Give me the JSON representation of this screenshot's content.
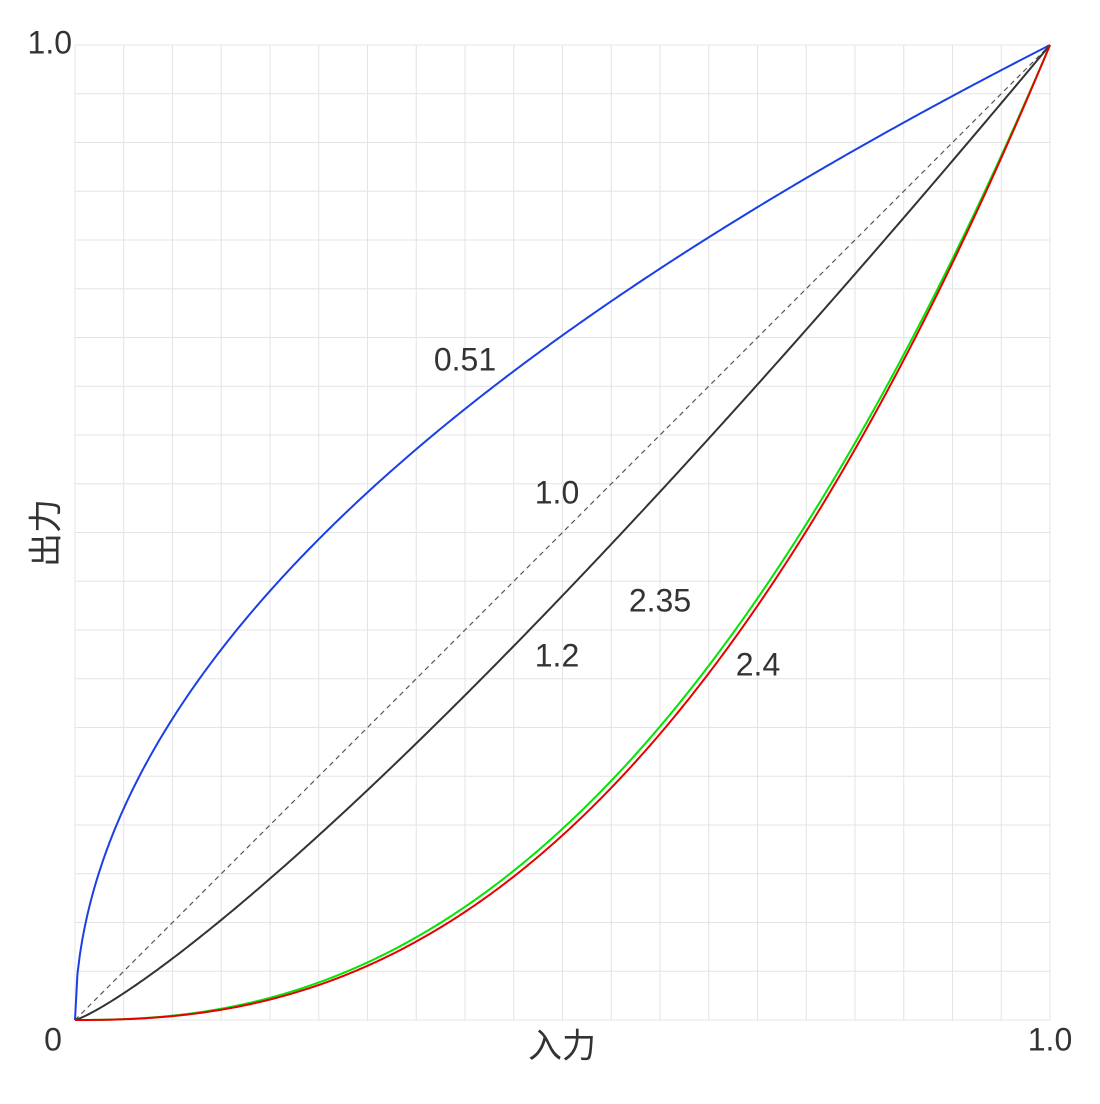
{
  "chart_data": {
    "type": "gamma-curves",
    "x_label": "入力",
    "y_label": "出力",
    "xlim": [
      0,
      1
    ],
    "ylim": [
      0,
      1
    ],
    "xticks": [
      0,
      {
        "value": 1,
        "label": "1.0"
      }
    ],
    "yticks": [
      {
        "value": 1,
        "label": "1.0"
      }
    ],
    "grid": true,
    "grid_step": 0.05,
    "series": [
      {
        "name": "0.51",
        "gamma": 0.51,
        "color": "#1a3fe6",
        "style": "solid"
      },
      {
        "name": "1.0",
        "gamma": 1.0,
        "color": "#555555",
        "style": "dashed"
      },
      {
        "name": "1.2",
        "gamma": 1.2,
        "color": "#333333",
        "style": "solid"
      },
      {
        "name": "2.35",
        "gamma": 2.35,
        "color": "#00e600",
        "style": "solid"
      },
      {
        "name": "2.4",
        "gamma": 2.4,
        "color": "#e60000",
        "style": "solid"
      }
    ]
  }
}
